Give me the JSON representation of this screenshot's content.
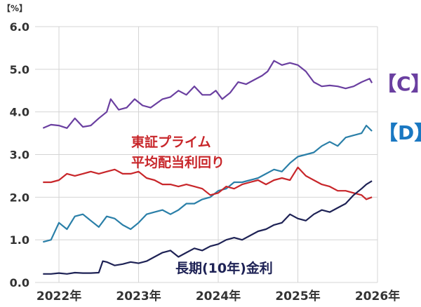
{
  "chart_data": {
    "type": "line",
    "unit_label": "【%】",
    "ylim": [
      0,
      6.0
    ],
    "yticks": [
      "0.0",
      "1.0",
      "2.0",
      "3.0",
      "4.0",
      "5.0",
      "6.0"
    ],
    "xlim": [
      2021.7,
      2026.0
    ],
    "xticks": [
      {
        "label": "2022年",
        "value": 2022
      },
      {
        "label": "2023年",
        "value": 2023
      },
      {
        "label": "2024年",
        "value": 2024
      },
      {
        "label": "2025年",
        "value": 2025
      },
      {
        "label": "2026年",
        "value": 2026
      }
    ],
    "grid": true,
    "series": [
      {
        "name": "【C】",
        "color": "#6a3fa0",
        "label_color": "#6a3fa0",
        "points": [
          [
            2021.8,
            3.62
          ],
          [
            2021.9,
            3.7
          ],
          [
            2022.0,
            3.68
          ],
          [
            2022.1,
            3.62
          ],
          [
            2022.2,
            3.85
          ],
          [
            2022.3,
            3.65
          ],
          [
            2022.4,
            3.68
          ],
          [
            2022.5,
            3.85
          ],
          [
            2022.6,
            4.0
          ],
          [
            2022.65,
            4.3
          ],
          [
            2022.75,
            4.05
          ],
          [
            2022.85,
            4.1
          ],
          [
            2022.95,
            4.3
          ],
          [
            2023.05,
            4.15
          ],
          [
            2023.15,
            4.1
          ],
          [
            2023.3,
            4.3
          ],
          [
            2023.4,
            4.35
          ],
          [
            2023.5,
            4.5
          ],
          [
            2023.6,
            4.4
          ],
          [
            2023.7,
            4.6
          ],
          [
            2023.8,
            4.4
          ],
          [
            2023.9,
            4.4
          ],
          [
            2023.97,
            4.5
          ],
          [
            2024.05,
            4.3
          ],
          [
            2024.15,
            4.45
          ],
          [
            2024.25,
            4.7
          ],
          [
            2024.35,
            4.65
          ],
          [
            2024.45,
            4.75
          ],
          [
            2024.55,
            4.85
          ],
          [
            2024.62,
            4.95
          ],
          [
            2024.7,
            5.2
          ],
          [
            2024.8,
            5.1
          ],
          [
            2024.9,
            5.15
          ],
          [
            2025.0,
            5.1
          ],
          [
            2025.1,
            4.95
          ],
          [
            2025.2,
            4.7
          ],
          [
            2025.3,
            4.6
          ],
          [
            2025.4,
            4.62
          ],
          [
            2025.5,
            4.6
          ],
          [
            2025.6,
            4.55
          ],
          [
            2025.7,
            4.6
          ],
          [
            2025.8,
            4.7
          ],
          [
            2025.9,
            4.78
          ],
          [
            2025.93,
            4.68
          ]
        ]
      },
      {
        "name": "【D】",
        "color": "#2a7fa8",
        "label_color": "#1a78c2",
        "points": [
          [
            2021.8,
            0.95
          ],
          [
            2021.9,
            1.0
          ],
          [
            2022.0,
            1.4
          ],
          [
            2022.1,
            1.25
          ],
          [
            2022.2,
            1.55
          ],
          [
            2022.3,
            1.6
          ],
          [
            2022.4,
            1.45
          ],
          [
            2022.5,
            1.3
          ],
          [
            2022.6,
            1.55
          ],
          [
            2022.7,
            1.5
          ],
          [
            2022.8,
            1.35
          ],
          [
            2022.9,
            1.25
          ],
          [
            2023.0,
            1.4
          ],
          [
            2023.1,
            1.6
          ],
          [
            2023.2,
            1.65
          ],
          [
            2023.3,
            1.7
          ],
          [
            2023.4,
            1.6
          ],
          [
            2023.5,
            1.7
          ],
          [
            2023.6,
            1.85
          ],
          [
            2023.7,
            1.85
          ],
          [
            2023.8,
            1.95
          ],
          [
            2023.9,
            2.0
          ],
          [
            2024.0,
            2.15
          ],
          [
            2024.1,
            2.2
          ],
          [
            2024.2,
            2.35
          ],
          [
            2024.3,
            2.35
          ],
          [
            2024.4,
            2.4
          ],
          [
            2024.5,
            2.45
          ],
          [
            2024.6,
            2.55
          ],
          [
            2024.7,
            2.65
          ],
          [
            2024.8,
            2.6
          ],
          [
            2024.9,
            2.8
          ],
          [
            2025.0,
            2.95
          ],
          [
            2025.1,
            3.0
          ],
          [
            2025.2,
            3.05
          ],
          [
            2025.3,
            3.2
          ],
          [
            2025.4,
            3.3
          ],
          [
            2025.5,
            3.2
          ],
          [
            2025.6,
            3.4
          ],
          [
            2025.7,
            3.45
          ],
          [
            2025.8,
            3.5
          ],
          [
            2025.86,
            3.68
          ],
          [
            2025.93,
            3.55
          ]
        ]
      },
      {
        "name": "東証プライム平均配当利回り",
        "color": "#c8262a",
        "label_color": "#c8262a",
        "points": [
          [
            2021.8,
            2.35
          ],
          [
            2021.9,
            2.35
          ],
          [
            2022.0,
            2.4
          ],
          [
            2022.1,
            2.55
          ],
          [
            2022.2,
            2.5
          ],
          [
            2022.3,
            2.55
          ],
          [
            2022.4,
            2.6
          ],
          [
            2022.5,
            2.55
          ],
          [
            2022.6,
            2.6
          ],
          [
            2022.7,
            2.65
          ],
          [
            2022.8,
            2.55
          ],
          [
            2022.9,
            2.55
          ],
          [
            2023.0,
            2.6
          ],
          [
            2023.1,
            2.45
          ],
          [
            2023.2,
            2.4
          ],
          [
            2023.3,
            2.3
          ],
          [
            2023.4,
            2.3
          ],
          [
            2023.5,
            2.25
          ],
          [
            2023.6,
            2.3
          ],
          [
            2023.7,
            2.25
          ],
          [
            2023.8,
            2.2
          ],
          [
            2023.9,
            2.05
          ],
          [
            2024.0,
            2.1
          ],
          [
            2024.1,
            2.25
          ],
          [
            2024.2,
            2.2
          ],
          [
            2024.3,
            2.3
          ],
          [
            2024.4,
            2.35
          ],
          [
            2024.5,
            2.4
          ],
          [
            2024.6,
            2.3
          ],
          [
            2024.7,
            2.4
          ],
          [
            2024.8,
            2.45
          ],
          [
            2024.9,
            2.4
          ],
          [
            2025.0,
            2.7
          ],
          [
            2025.1,
            2.5
          ],
          [
            2025.2,
            2.4
          ],
          [
            2025.3,
            2.3
          ],
          [
            2025.4,
            2.25
          ],
          [
            2025.5,
            2.15
          ],
          [
            2025.6,
            2.15
          ],
          [
            2025.7,
            2.1
          ],
          [
            2025.8,
            2.05
          ],
          [
            2025.86,
            1.95
          ],
          [
            2025.93,
            2.0
          ]
        ]
      },
      {
        "name": "長期(10年)金利",
        "color": "#1e2255",
        "label_color": "#1e2255",
        "points": [
          [
            2021.8,
            0.2
          ],
          [
            2021.9,
            0.2
          ],
          [
            2022.0,
            0.22
          ],
          [
            2022.1,
            0.2
          ],
          [
            2022.2,
            0.23
          ],
          [
            2022.3,
            0.22
          ],
          [
            2022.4,
            0.22
          ],
          [
            2022.5,
            0.23
          ],
          [
            2022.55,
            0.5
          ],
          [
            2022.6,
            0.48
          ],
          [
            2022.7,
            0.4
          ],
          [
            2022.8,
            0.43
          ],
          [
            2022.9,
            0.48
          ],
          [
            2023.0,
            0.45
          ],
          [
            2023.1,
            0.5
          ],
          [
            2023.2,
            0.6
          ],
          [
            2023.3,
            0.7
          ],
          [
            2023.4,
            0.75
          ],
          [
            2023.5,
            0.6
          ],
          [
            2023.6,
            0.7
          ],
          [
            2023.7,
            0.8
          ],
          [
            2023.8,
            0.75
          ],
          [
            2023.9,
            0.85
          ],
          [
            2024.0,
            0.9
          ],
          [
            2024.1,
            1.0
          ],
          [
            2024.2,
            1.05
          ],
          [
            2024.3,
            1.0
          ],
          [
            2024.4,
            1.1
          ],
          [
            2024.5,
            1.2
          ],
          [
            2024.6,
            1.25
          ],
          [
            2024.7,
            1.35
          ],
          [
            2024.8,
            1.4
          ],
          [
            2024.9,
            1.6
          ],
          [
            2025.0,
            1.5
          ],
          [
            2025.1,
            1.45
          ],
          [
            2025.2,
            1.6
          ],
          [
            2025.3,
            1.7
          ],
          [
            2025.4,
            1.65
          ],
          [
            2025.5,
            1.75
          ],
          [
            2025.6,
            1.85
          ],
          [
            2025.7,
            2.05
          ],
          [
            2025.8,
            2.2
          ],
          [
            2025.86,
            2.3
          ],
          [
            2025.93,
            2.38
          ]
        ]
      }
    ]
  },
  "annotations": {
    "dividend_line1": "東証プライム",
    "dividend_line2": "平均配当利回り",
    "jgb": "長期(10年)金利",
    "tag_c": "【C】",
    "tag_d": "【D】"
  }
}
